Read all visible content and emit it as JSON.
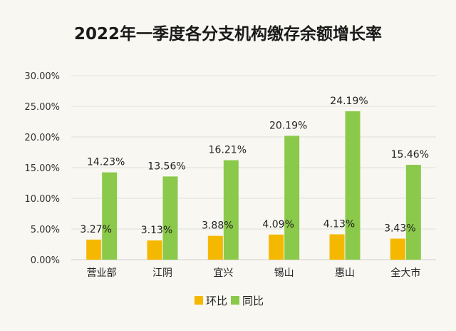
{
  "chart_data": {
    "type": "bar",
    "title": "2022年一季度各分支机构缴存余额增长率",
    "categories": [
      "营业部",
      "江阴",
      "宜兴",
      "锡山",
      "惠山",
      "全大市"
    ],
    "series": [
      {
        "name": "环比",
        "color": "#f5b800",
        "values": [
          3.27,
          3.13,
          3.88,
          4.09,
          4.13,
          3.43
        ],
        "labels": [
          "3.27%",
          "3.13%",
          "3.88%",
          "4.09%",
          "4.13%",
          "3.43%"
        ]
      },
      {
        "name": "同比",
        "color": "#8bc94a",
        "values": [
          14.23,
          13.56,
          16.21,
          20.19,
          24.19,
          15.46
        ],
        "labels": [
          "14.23%",
          "13.56%",
          "16.21%",
          "20.19%",
          "24.19%",
          "15.46%"
        ]
      }
    ],
    "ylim": [
      0,
      30
    ],
    "yticks": [
      0,
      5,
      10,
      15,
      20,
      25,
      30
    ],
    "ytick_labels": [
      "0.00%",
      "5.00%",
      "10.00%",
      "15.00%",
      "20.00%",
      "25.00%",
      "30.00%"
    ],
    "grid": true,
    "legend": "bottom"
  }
}
